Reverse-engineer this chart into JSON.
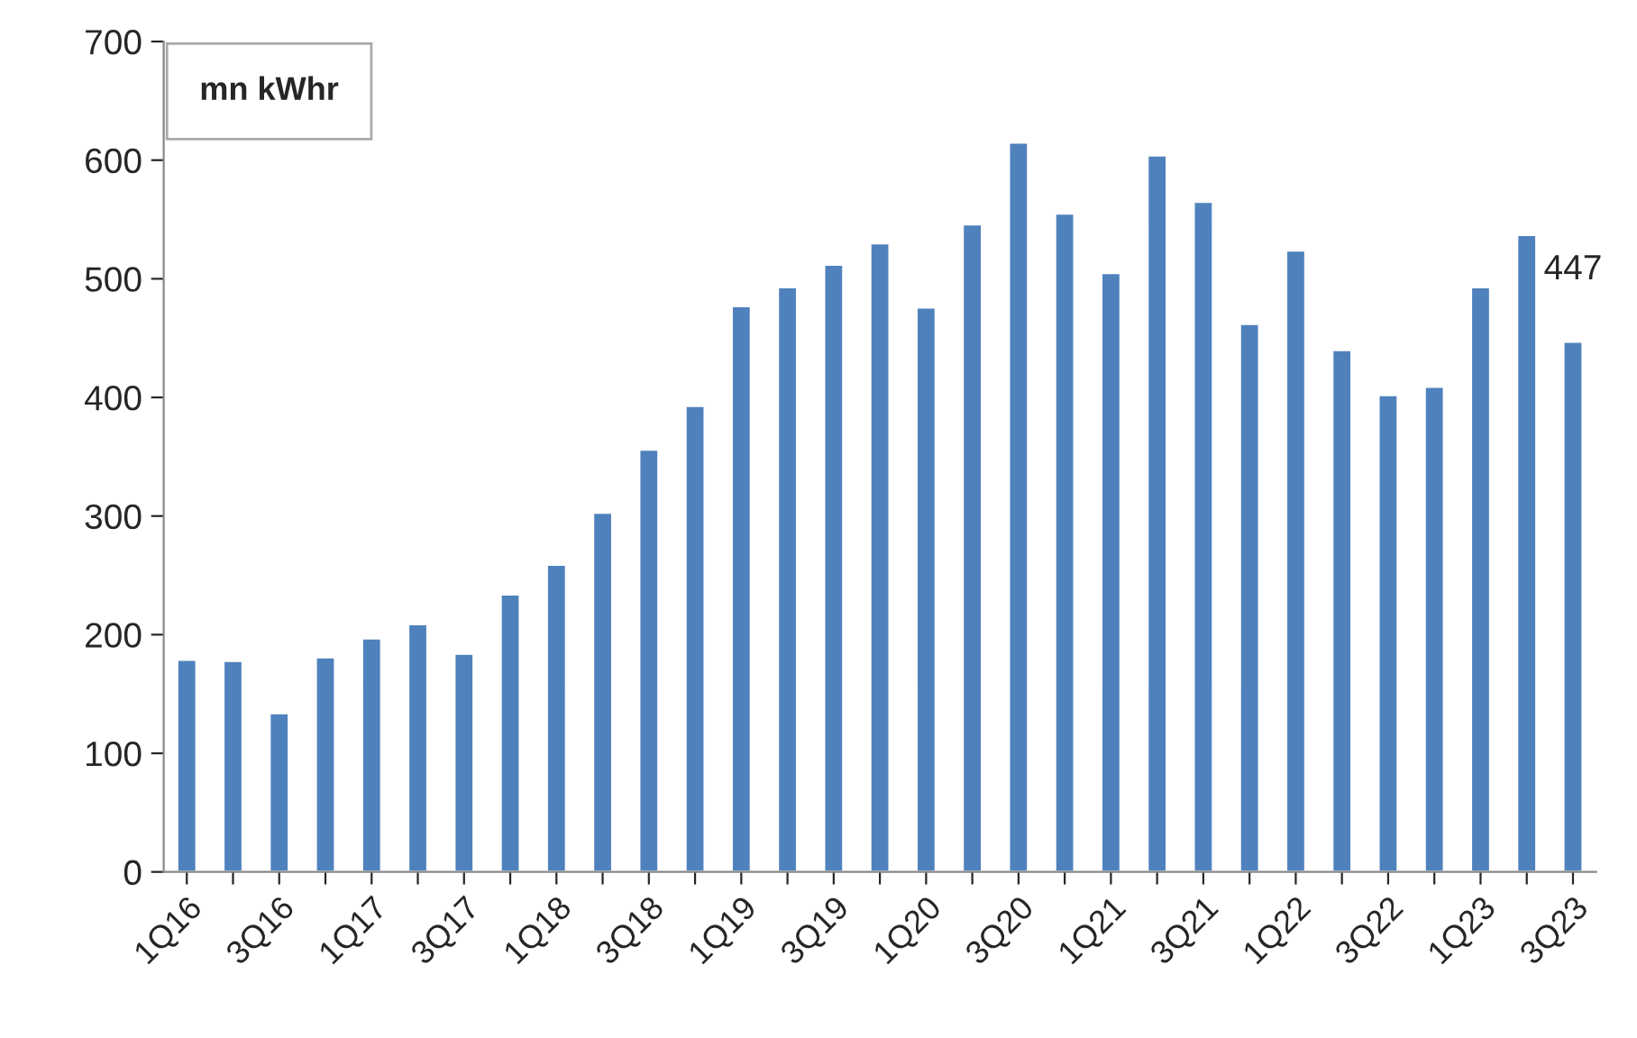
{
  "chart_data": {
    "type": "bar",
    "categories": [
      "1Q16",
      null,
      "3Q16",
      null,
      "1Q17",
      null,
      "3Q17",
      null,
      "1Q18",
      null,
      "3Q18",
      null,
      "1Q19",
      null,
      "3Q19",
      null,
      "1Q20",
      null,
      "3Q20",
      null,
      "1Q21",
      null,
      "3Q21",
      null,
      "1Q22",
      null,
      "3Q22",
      null,
      "1Q23",
      null,
      "3Q23"
    ],
    "values": [
      179,
      178,
      134,
      181,
      197,
      209,
      184,
      234,
      259,
      303,
      356,
      393,
      477,
      493,
      512,
      530,
      476,
      546,
      615,
      555,
      505,
      604,
      565,
      462,
      524,
      440,
      402,
      409,
      493,
      537,
      447
    ],
    "value_labels": [
      null,
      null,
      null,
      null,
      null,
      null,
      null,
      null,
      null,
      null,
      null,
      null,
      null,
      null,
      null,
      null,
      null,
      null,
      null,
      null,
      null,
      null,
      null,
      null,
      null,
      null,
      null,
      null,
      null,
      null,
      "447"
    ],
    "color": "#4f81bd",
    "ylim": [
      0,
      700
    ],
    "yticks": [
      0,
      100,
      200,
      300,
      400,
      500,
      600,
      700
    ],
    "annotations": [
      "mn kWhr"
    ],
    "grid": false
  }
}
